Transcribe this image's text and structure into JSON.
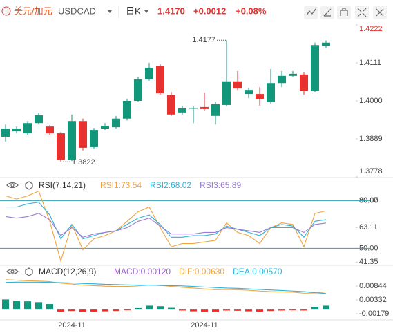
{
  "header": {
    "pair": "美元/加元",
    "symbol": "USDCAD",
    "period": "日K",
    "price": "1.4170",
    "change": "+0.0012",
    "change_pct": "+0.08%"
  },
  "chart_data": [
    {
      "type": "candlestick",
      "categories": [
        null,
        null,
        null,
        null,
        null,
        null,
        "2024-11",
        null,
        null,
        null,
        null,
        null,
        null,
        null,
        null,
        null,
        null,
        null,
        "2024-11",
        null,
        null,
        null,
        null,
        null,
        null,
        null,
        null,
        null,
        null,
        null
      ],
      "open": [
        1.3895,
        1.3911,
        1.3905,
        1.3935,
        1.3925,
        1.3905,
        1.3828,
        1.3941,
        1.3865,
        1.3919,
        1.3923,
        1.3948,
        1.4,
        1.4063,
        1.4101,
        1.4018,
        1.3966,
        1.3978,
        1.3982,
        1.3956,
        1.3988,
        1.4057,
        1.402,
        1.402,
        1.3996,
        1.4052,
        1.4073,
        1.4077,
        1.403,
        1.4161
      ],
      "high": [
        1.3931,
        1.3925,
        1.3941,
        1.3964,
        1.3929,
        1.3909,
        1.396,
        1.3948,
        1.3921,
        1.3935,
        1.3956,
        1.4006,
        1.4069,
        1.4111,
        1.4107,
        1.4026,
        1.3986,
        1.3984,
        1.4024,
        1.3996,
        1.4177,
        1.4087,
        1.4038,
        1.404,
        1.4093,
        1.4087,
        1.4087,
        1.4085,
        1.417,
        1.4176
      ],
      "low": [
        1.3881,
        1.3905,
        1.3901,
        1.3931,
        1.3901,
        1.3822,
        1.3824,
        1.3855,
        1.3861,
        1.3915,
        1.3919,
        1.3943,
        1.3996,
        1.4059,
        1.4018,
        1.3956,
        1.396,
        1.3935,
        1.3972,
        1.3931,
        1.3984,
        1.4032,
        1.4008,
        1.3986,
        1.3992,
        1.404,
        1.4069,
        1.4018,
        1.4026,
        1.4155
      ],
      "close": [
        1.3919,
        1.3919,
        1.3935,
        1.3958,
        1.3905,
        1.3828,
        1.3941,
        1.3863,
        1.3915,
        1.3927,
        1.3948,
        1.4,
        1.4063,
        1.4097,
        1.4022,
        1.396,
        1.3978,
        1.3979,
        1.3976,
        1.399,
        1.4057,
        1.4036,
        1.4032,
        1.4006,
        1.4052,
        1.4073,
        1.4079,
        1.403,
        1.4163,
        1.417
      ],
      "up_color": "#13977a",
      "down_color": "#e8322f",
      "ylim": [
        1.3778,
        1.4222
      ],
      "yticks": [
        1.4222,
        1.4111,
        {
          "value": 1.4,
          "label": "1.4000"
        },
        1.3889,
        1.3778
      ],
      "annotations": [
        {
          "label": "1.4177",
          "value": 1.4177
        },
        {
          "label": "1.3822",
          "value": 1.3822
        }
      ]
    },
    {
      "type": "line",
      "title": "RSI(7,14,21)",
      "series": [
        {
          "name": "RSI1:73.54",
          "color": "#f2a33a",
          "values": [
            83,
            81,
            83,
            86,
            67,
            42,
            65,
            49,
            56,
            58,
            61,
            67,
            73,
            76,
            63,
            51,
            53,
            53,
            54,
            55,
            66,
            60,
            58,
            53,
            63,
            66,
            65,
            51,
            72,
            73.54
          ]
        },
        {
          "name": "RSI2:68.02",
          "color": "#2cb3d9",
          "values": [
            76,
            76,
            78,
            79,
            71,
            56,
            65,
            56,
            58,
            60,
            61,
            65,
            69,
            71,
            65,
            57,
            57,
            58,
            58,
            59,
            64,
            62,
            60,
            58,
            63,
            65,
            64,
            57,
            67,
            68.02
          ]
        },
        {
          "name": "RSI3:65.89",
          "color": "#9a7bd6",
          "values": [
            70,
            69,
            70,
            72,
            68,
            58,
            63,
            57,
            59,
            60,
            61,
            63,
            67,
            69,
            64,
            59,
            59,
            59,
            60,
            60,
            63,
            62,
            61,
            60,
            63,
            63,
            63,
            60,
            65,
            65.89
          ]
        }
      ],
      "reference_lines": [
        80,
        50
      ],
      "reference_color": "#2aa2b5",
      "ylim": [
        38,
        88
      ],
      "yticks": [
        80.07,
        {
          "value": 80,
          "label": "80.00"
        },
        63.11,
        {
          "value": 50,
          "label": "50.00"
        },
        41.35
      ]
    },
    {
      "type": "macd",
      "title": "MACD(12,26,9)",
      "series": [
        {
          "name": "MACD:0.00120",
          "color": "#9a5fc9",
          "up_color": "#13977a",
          "down_color": "#e8322f",
          "kind": "bar",
          "values": [
            0.0035,
            0.003,
            0.0028,
            0.0025,
            0.0018,
            -0.001,
            -0.0008,
            -0.0012,
            -0.001,
            -0.0009,
            -0.0008,
            -0.0005,
            0.0003,
            0.0012,
            0.001,
            0.0004,
            -0.0006,
            -0.0009,
            -0.0011,
            -0.0012,
            -0.0006,
            -0.0007,
            -0.0009,
            -0.001,
            -0.0008,
            -0.0006,
            -0.0005,
            -0.0006,
            0.0008,
            0.0012
          ]
        },
        {
          "name": "DIF:0.00630",
          "color": "#f2a33a",
          "kind": "line",
          "values": [
            0.0108,
            0.0106,
            0.0104,
            0.0103,
            0.0101,
            0.0095,
            0.0092,
            0.0088,
            0.0086,
            0.0084,
            0.0083,
            0.0083,
            0.0085,
            0.0088,
            0.0087,
            0.0083,
            0.008,
            0.0077,
            0.0074,
            0.0071,
            0.0072,
            0.0071,
            0.0069,
            0.0066,
            0.0064,
            0.0063,
            0.0062,
            0.0058,
            0.0059,
            0.0063
          ]
        },
        {
          "name": "DEA:0.00570",
          "color": "#2cb3d9",
          "kind": "line",
          "values": [
            0.0098,
            0.0099,
            0.0099,
            0.0099,
            0.0098,
            0.0097,
            0.0096,
            0.0094,
            0.0093,
            0.0091,
            0.009,
            0.0089,
            0.0088,
            0.0088,
            0.0087,
            0.0086,
            0.0085,
            0.0083,
            0.0081,
            0.0079,
            0.0077,
            0.0076,
            0.0074,
            0.0072,
            0.007,
            0.0068,
            0.0066,
            0.0064,
            0.006,
            0.0057
          ]
        }
      ],
      "ylim": [
        -0.0038,
        0.0133
      ],
      "yticks": [
        0.00844,
        0.00332,
        -0.00179
      ]
    }
  ]
}
